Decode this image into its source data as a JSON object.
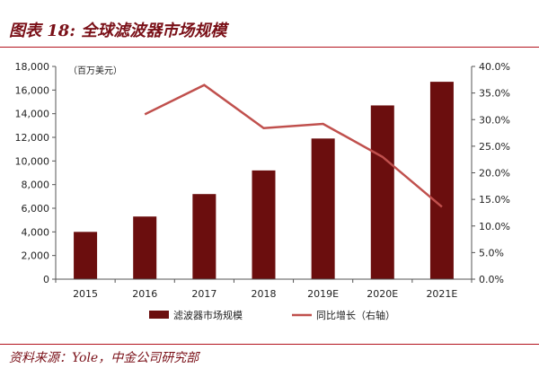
{
  "figure": {
    "title": "图表 18:  全球滤波器市场规模",
    "source": "资料来源：Yole，中金公司研究部"
  },
  "chart_data": {
    "type": "bar",
    "categories": [
      "2015",
      "2016",
      "2017",
      "2018",
      "2019E",
      "2020E",
      "2021E"
    ],
    "series": [
      {
        "name": "滤波器市场规模",
        "type": "bar",
        "axis": "left",
        "color": "#6b0e0e",
        "values": [
          4000,
          5300,
          7200,
          9200,
          11900,
          14700,
          16700
        ]
      },
      {
        "name": "同比增长（右轴）",
        "type": "line",
        "axis": "right",
        "color": "#c0504d",
        "values": [
          null,
          31.0,
          36.5,
          28.4,
          29.2,
          23.0,
          13.6
        ]
      }
    ],
    "y_left": {
      "unit_label": "（百万美元）",
      "min": 0,
      "max": 18000,
      "step": 2000,
      "ticks": [
        "0",
        "2,000",
        "4,000",
        "6,000",
        "8,000",
        "10,000",
        "12,000",
        "14,000",
        "16,000",
        "18,000"
      ]
    },
    "y_right": {
      "min": 0,
      "max": 40,
      "step": 5,
      "ticks": [
        "0.0%",
        "5.0%",
        "10.0%",
        "15.0%",
        "20.0%",
        "25.0%",
        "30.0%",
        "35.0%",
        "40.0%"
      ]
    },
    "grid": false,
    "legend_position": "bottom"
  }
}
